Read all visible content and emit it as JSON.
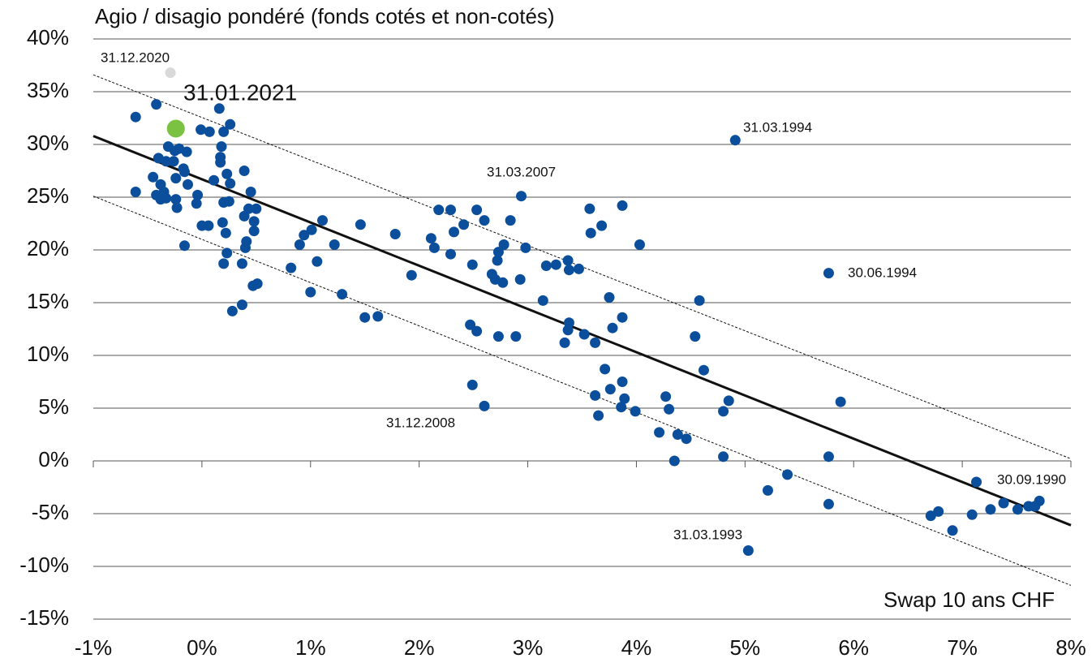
{
  "chart_data": {
    "type": "scatter",
    "title": "Agio / disagio pondéré (fonds cotés et non-cotés)",
    "x_label": "Swap 10 ans CHF",
    "xlim": [
      -1,
      8
    ],
    "ylim": [
      -15,
      40
    ],
    "xticks": [
      {
        "value": -1,
        "label": "-1%"
      },
      {
        "value": 0,
        "label": "0%"
      },
      {
        "value": 1,
        "label": "1%"
      },
      {
        "value": 2,
        "label": "2%"
      },
      {
        "value": 3,
        "label": "3%"
      },
      {
        "value": 4,
        "label": "4%"
      },
      {
        "value": 5,
        "label": "5%"
      },
      {
        "value": 6,
        "label": "6%"
      },
      {
        "value": 7,
        "label": "7%"
      },
      {
        "value": 8,
        "label": "8%"
      }
    ],
    "yticks": [
      {
        "value": -15,
        "label": "-15%"
      },
      {
        "value": -10,
        "label": "-10%"
      },
      {
        "value": -5,
        "label": "-5%"
      },
      {
        "value": 0,
        "label": "0%"
      },
      {
        "value": 5,
        "label": "5%"
      },
      {
        "value": 10,
        "label": "10%"
      },
      {
        "value": 15,
        "label": "15%"
      },
      {
        "value": 20,
        "label": "20%"
      },
      {
        "value": 25,
        "label": "25%"
      },
      {
        "value": 30,
        "label": "30%"
      },
      {
        "value": 35,
        "label": "35%"
      },
      {
        "value": 40,
        "label": "40%"
      }
    ],
    "grid": true,
    "series": [
      {
        "color": "#0b4f9c",
        "x": [
          -0.61,
          -0.61,
          -0.42,
          -0.45,
          -0.42,
          -0.4,
          -0.38,
          -0.38,
          -0.35,
          -0.33,
          -0.31,
          -0.33,
          -0.26,
          -0.25,
          -0.24,
          -0.24,
          -0.23,
          -0.21,
          -0.17,
          -0.16,
          -0.14,
          -0.13,
          -0.16,
          -0.04,
          -0.05,
          -0.01,
          0.07,
          0.0,
          0.06,
          0.11,
          0.16,
          0.17,
          0.17,
          0.18,
          0.2,
          0.26,
          0.23,
          0.26,
          0.2,
          0.25,
          0.19,
          0.22,
          0.23,
          0.2,
          0.28,
          0.39,
          0.45,
          0.39,
          0.43,
          0.5,
          0.48,
          0.41,
          0.4,
          0.48,
          0.37,
          0.37,
          0.47,
          0.51,
          0.82,
          0.9,
          0.94,
          1.01,
          1.06,
          1.11,
          1.0,
          1.22,
          1.29,
          1.46,
          1.5,
          1.62,
          1.78,
          1.93,
          2.11,
          2.14,
          2.18,
          2.29,
          2.32,
          2.29,
          2.41,
          2.49,
          2.53,
          2.6,
          2.84,
          2.47,
          2.53,
          2.49,
          2.6,
          2.67,
          2.7,
          2.73,
          2.72,
          2.78,
          2.77,
          2.73,
          2.89,
          2.94,
          2.98,
          2.93,
          3.14,
          3.17,
          3.26,
          3.37,
          3.38,
          3.47,
          3.34,
          3.37,
          3.38,
          3.52,
          3.62,
          3.57,
          3.58,
          3.68,
          3.87,
          3.75,
          3.78,
          3.87,
          4.03,
          3.71,
          3.76,
          3.87,
          3.62,
          3.89,
          3.86,
          3.99,
          3.65,
          4.21,
          4.27,
          4.3,
          4.38,
          4.46,
          4.35,
          4.54,
          4.58,
          4.62,
          4.8,
          4.85,
          4.8,
          4.91,
          5.03,
          5.21,
          5.39,
          5.77,
          5.77,
          5.77,
          5.88,
          6.71,
          6.78,
          6.91,
          7.09,
          7.13,
          7.26,
          7.38,
          7.51,
          7.61,
          7.67,
          7.71
        ],
        "values": [
          32.6,
          25.5,
          33.8,
          26.9,
          25.2,
          28.7,
          24.8,
          26.2,
          25.5,
          24.9,
          29.8,
          28.4,
          28.4,
          29.4,
          26.8,
          24.8,
          24.0,
          29.6,
          27.7,
          27.4,
          29.3,
          26.2,
          20.4,
          25.2,
          24.4,
          31.4,
          31.2,
          22.3,
          22.3,
          26.6,
          33.4,
          28.8,
          28.3,
          29.8,
          31.2,
          31.9,
          27.2,
          26.3,
          24.5,
          24.6,
          22.6,
          21.6,
          19.7,
          18.7,
          14.2,
          27.5,
          25.5,
          23.2,
          23.9,
          23.9,
          22.7,
          20.8,
          20.2,
          21.8,
          18.7,
          14.8,
          16.6,
          16.8,
          18.3,
          20.5,
          21.4,
          21.9,
          18.9,
          22.8,
          16.0,
          20.5,
          15.8,
          22.4,
          13.6,
          13.7,
          21.5,
          17.6,
          21.1,
          20.2,
          23.8,
          23.8,
          21.7,
          19.6,
          22.4,
          18.6,
          23.8,
          22.8,
          22.8,
          12.9,
          12.3,
          7.2,
          5.2,
          17.7,
          17.2,
          19.8,
          19.0,
          20.5,
          16.9,
          11.8,
          11.8,
          25.1,
          20.2,
          17.2,
          15.2,
          18.5,
          18.6,
          19.0,
          18.1,
          18.2,
          11.2,
          12.4,
          13.1,
          12.0,
          11.2,
          23.9,
          21.6,
          22.3,
          24.2,
          15.5,
          12.6,
          13.6,
          20.5,
          8.7,
          6.8,
          7.5,
          6.2,
          5.9,
          5.1,
          4.7,
          4.3,
          2.7,
          6.1,
          4.9,
          2.5,
          2.1,
          0.0,
          11.8,
          15.2,
          8.6,
          4.7,
          5.7,
          0.4,
          30.4,
          -8.5,
          -2.8,
          -1.3,
          17.8,
          -4.1,
          0.4,
          5.6,
          -5.2,
          -4.8,
          -6.6,
          -5.1,
          -2.0,
          -4.6,
          -4.0,
          -4.6,
          -4.3,
          -4.3,
          -3.8
        ]
      },
      {
        "color": "#d9d9d9",
        "x": [
          -0.29
        ],
        "values": [
          36.8
        ]
      },
      {
        "color": "#7cc242",
        "x": [
          -0.24
        ],
        "values": [
          31.5
        ]
      }
    ],
    "lines": [
      {
        "style": "solid",
        "x": [
          -1,
          8
        ],
        "values": [
          30.8,
          -6.1
        ]
      },
      {
        "style": "dashed",
        "x": [
          -1,
          8
        ],
        "values": [
          36.6,
          0.2
        ]
      },
      {
        "style": "dashed",
        "x": [
          -1,
          8
        ],
        "values": [
          25.1,
          -11.8
        ]
      }
    ],
    "annotations": [
      "31.12.2020",
      "31.01.2021",
      "31.03.1994",
      "31.03.2007",
      "30.06.1994",
      "31.12.2008",
      "30.09.1990",
      "31.03.1993"
    ]
  }
}
